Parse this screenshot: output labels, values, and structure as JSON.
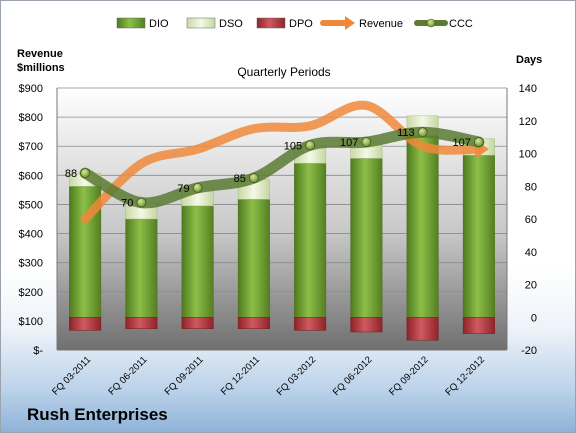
{
  "chart_data": {
    "type": "bar",
    "title": "Quarterly Periods",
    "company": "Rush Enterprises",
    "y_left_label": [
      "Revenue",
      "$millions"
    ],
    "y_right_label": "Days",
    "categories": [
      "FQ 03-2011",
      "FQ 06-2011",
      "FQ 09-2011",
      "FQ 12-2011",
      "FQ 03-2012",
      "FQ 06-2012",
      "FQ 09-2012",
      "FQ 12-2012"
    ],
    "y_left_ticks": [
      "$-",
      "$100",
      "$200",
      "$300",
      "$400",
      "$500",
      "$600",
      "$700",
      "$800",
      "$900"
    ],
    "y_right_ticks": [
      "-20",
      "0",
      "20",
      "40",
      "60",
      "80",
      "100",
      "120",
      "140"
    ],
    "y_left_range": [
      0,
      900
    ],
    "y_right_range": [
      -20,
      140
    ],
    "series": [
      {
        "name": "DIO",
        "axis": "right",
        "type": "bar",
        "values": [
          80,
          60,
          68,
          72,
          94,
          97,
          111,
          99
        ]
      },
      {
        "name": "DSO",
        "axis": "right",
        "type": "bar",
        "values": [
          8,
          10,
          11,
          12,
          11,
          10,
          12,
          10
        ]
      },
      {
        "name": "DPO",
        "axis": "right",
        "type": "bar",
        "values": [
          -8,
          -7,
          -7,
          -7,
          -8,
          -9,
          -14,
          -10
        ]
      },
      {
        "name": "Revenue",
        "axis": "left",
        "type": "line",
        "values": [
          450,
          640,
          690,
          760,
          770,
          840,
          700,
          690
        ]
      },
      {
        "name": "CCC",
        "axis": "right",
        "type": "line",
        "values": [
          88,
          70,
          79,
          85,
          105,
          107,
          113,
          107
        ]
      }
    ],
    "ccc_labels": [
      "88",
      "70",
      "79",
      "85",
      "105",
      "107",
      "113",
      "107"
    ],
    "colors": {
      "DIO": "#6e9a2f",
      "DSO": "#e9f2d3",
      "DPO": "#b33a3f",
      "Revenue": "#f0883a",
      "CCC": "#5b7a32",
      "plot_area": "#9a9a9a"
    }
  }
}
